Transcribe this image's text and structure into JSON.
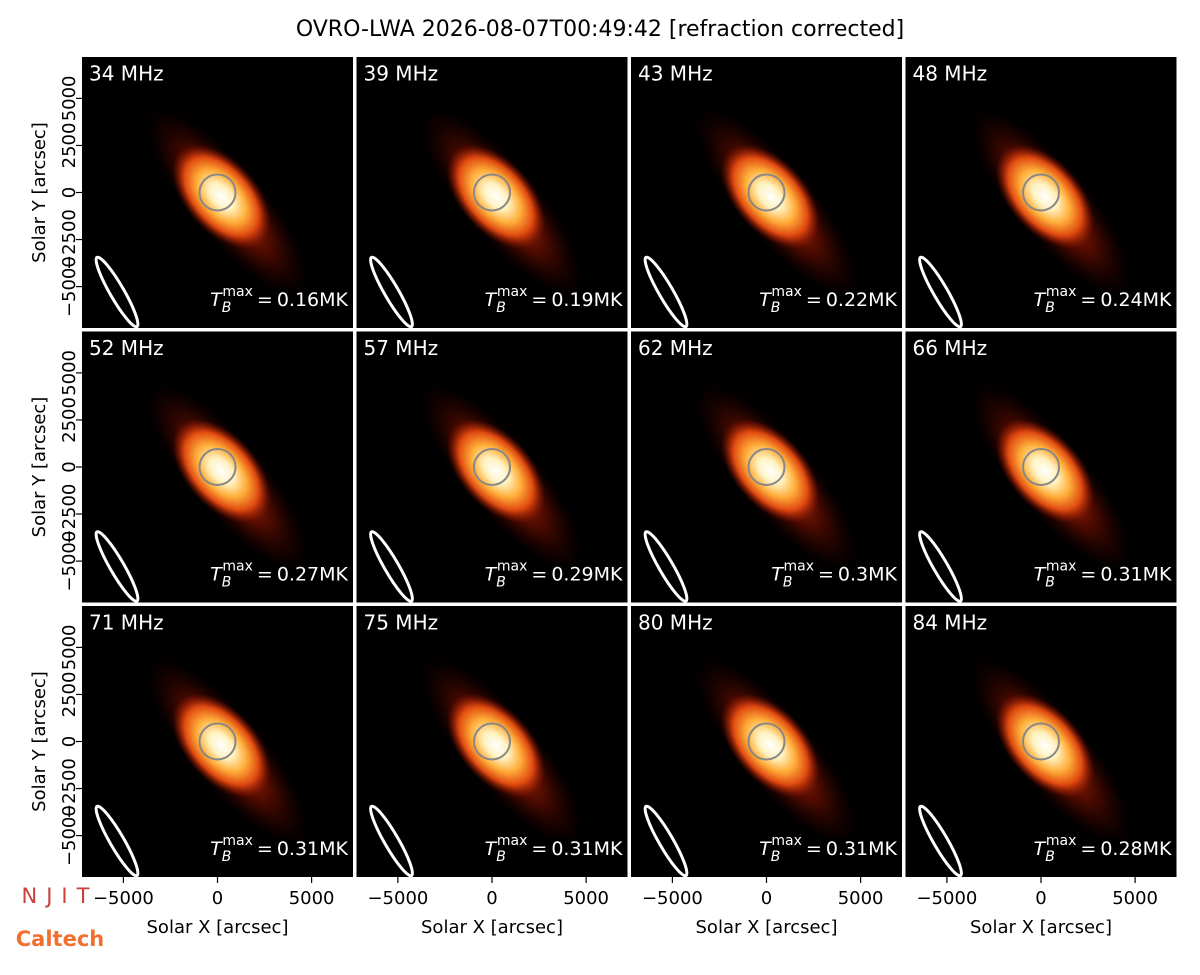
{
  "chart_data": {
    "type": "image-grid",
    "title": "OVRO-LWA 2026-08-07T00:49:42 [refraction corrected]",
    "xlabel": "Solar X [arcsec]",
    "ylabel": "Solar Y [arcsec]",
    "xlim": [
      -7200,
      7200
    ],
    "ylim": [
      -7200,
      7200
    ],
    "xticks": [
      {
        "value": -5000,
        "label": "−5000"
      },
      0,
      5000
    ],
    "yticks": [
      {
        "value": -5000,
        "label": "−5000"
      },
      {
        "value": -2500,
        "label": "−2500"
      },
      0,
      2500,
      5000
    ],
    "tb_symbol": "T",
    "tb_subscript": "B",
    "tb_superscript": "max",
    "tb_equals": "=",
    "panels": [
      {
        "label": "34 MHz",
        "tb_max": 0.16,
        "tb_max_label": "0.16MK"
      },
      {
        "label": "39 MHz",
        "tb_max": 0.19,
        "tb_max_label": "0.19MK"
      },
      {
        "label": "43 MHz",
        "tb_max": 0.22,
        "tb_max_label": "0.22MK"
      },
      {
        "label": "48 MHz",
        "tb_max": 0.24,
        "tb_max_label": "0.24MK"
      },
      {
        "label": "52 MHz",
        "tb_max": 0.27,
        "tb_max_label": "0.27MK"
      },
      {
        "label": "57 MHz",
        "tb_max": 0.29,
        "tb_max_label": "0.29MK"
      },
      {
        "label": "62 MHz",
        "tb_max": 0.3,
        "tb_max_label": "0.3MK"
      },
      {
        "label": "66 MHz",
        "tb_max": 0.31,
        "tb_max_label": "0.31MK"
      },
      {
        "label": "71 MHz",
        "tb_max": 0.31,
        "tb_max_label": "0.31MK"
      },
      {
        "label": "75 MHz",
        "tb_max": 0.31,
        "tb_max_label": "0.31MK"
      },
      {
        "label": "80 MHz",
        "tb_max": 0.31,
        "tb_max_label": "0.31MK"
      },
      {
        "label": "84 MHz",
        "tb_max": 0.28,
        "tb_max_label": "0.28MK"
      }
    ]
  },
  "logos": {
    "njit": "NJIT",
    "caltech": "Caltech"
  }
}
